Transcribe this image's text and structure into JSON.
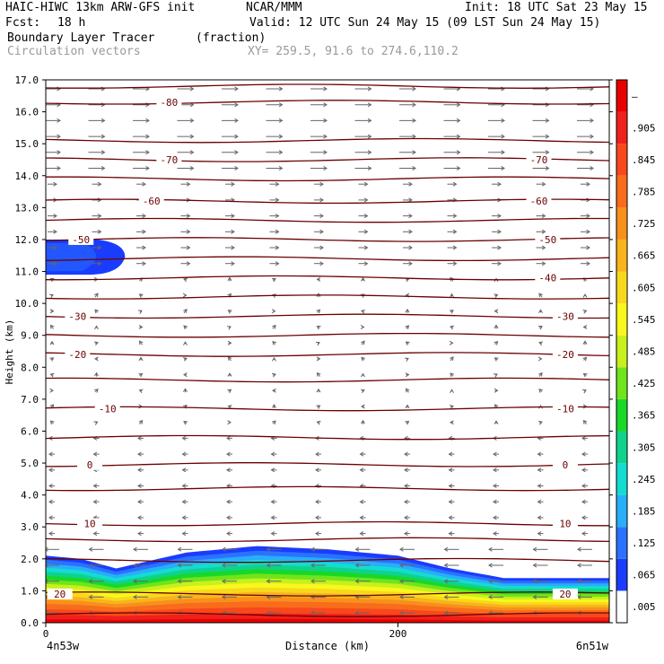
{
  "header": {
    "model": "HAIC-HIWC 13km ARW-GFS init",
    "org": "NCAR/MMM",
    "init": "Init: 18 UTC Sat 23 May 15",
    "fcst_label": "Fcst:",
    "fcst_value": "18 h",
    "valid": "Valid: 12 UTC Sun 24 May 15 (09 LST Sun 24 May 15)",
    "field_name": "Boundary Layer Tracer",
    "field_units": "(fraction)",
    "overlay_name": "Circulation vectors",
    "xsection": "XY= 259.5, 91.6 to 274.6,110.2"
  },
  "chart_data": {
    "type": "heatmap",
    "xlabel": "Distance (km)",
    "ylabel": "Height (km)",
    "xlim": [
      0,
      320
    ],
    "ylim": [
      0,
      17
    ],
    "x_ticks": [
      {
        "value": 0,
        "label": "0"
      },
      {
        "value": 200,
        "label": "200"
      }
    ],
    "x_end_labels": {
      "left": "4n53w",
      "right": "6n51w"
    },
    "y_ticks": [
      "0.0",
      "1.0",
      "2.0",
      "3.0",
      "4.0",
      "5.0",
      "6.0",
      "7.0",
      "8.0",
      "9.0",
      "10.0",
      "11.0",
      "12.0",
      "13.0",
      "14.0",
      "15.0",
      "16.0",
      "17.0"
    ],
    "colorbar": {
      "labels": [
        ".005",
        ".065",
        ".125",
        ".185",
        ".245",
        ".305",
        ".365",
        ".425",
        ".485",
        ".545",
        ".605",
        ".665",
        ".725",
        ".785",
        ".845",
        ".905",
        "–"
      ],
      "colors": [
        "#ffffff",
        "#1a3cff",
        "#2a72ff",
        "#28aefa",
        "#14dcd2",
        "#10d28c",
        "#18d828",
        "#70e41c",
        "#c8f01c",
        "#f8f81c",
        "#f8d81c",
        "#f8b41c",
        "#f8901c",
        "#f86c1c",
        "#f8481c",
        "#f0201c",
        "#e80000"
      ]
    },
    "tracer_layer": {
      "description_x_km": [
        0,
        20,
        40,
        80,
        120,
        160,
        200,
        230,
        260,
        320
      ],
      "top_height_km": [
        2.1,
        2.0,
        1.7,
        2.2,
        2.4,
        2.3,
        2.1,
        1.7,
        1.4,
        1.4
      ]
    },
    "upper_blob": {
      "x_km": [
        0,
        45
      ],
      "height_km": [
        10.9,
        12.0
      ]
    },
    "contours": [
      {
        "label": "-80",
        "height_km": 16.3,
        "label_x_km": [
          70
        ]
      },
      {
        "label": "-70",
        "height_km": 14.5,
        "label_x_km": [
          70,
          280
        ]
      },
      {
        "label": "-60",
        "height_km": 13.2,
        "label_x_km": [
          60,
          280
        ]
      },
      {
        "label": "-50",
        "height_km": 12.0,
        "label_x_km": [
          20,
          285
        ]
      },
      {
        "label": "-40",
        "height_km": 10.8,
        "label_x_km": [
          285
        ]
      },
      {
        "label": "-30",
        "height_km": 9.6,
        "label_x_km": [
          18,
          295
        ]
      },
      {
        "label": "-20",
        "height_km": 8.4,
        "label_x_km": [
          18,
          295
        ]
      },
      {
        "label": "-10",
        "height_km": 6.7,
        "label_x_km": [
          35,
          295
        ]
      },
      {
        "label": "0",
        "height_km": 4.95,
        "label_x_km": [
          25,
          295
        ]
      },
      {
        "label": "10",
        "height_km": 3.1,
        "label_x_km": [
          25,
          295
        ]
      },
      {
        "label": "20",
        "height_km": 0.9,
        "label_x_km": [
          8,
          295
        ]
      }
    ],
    "extra_isotherm_heights_km": [
      16.8,
      15.1,
      13.9,
      12.6,
      11.4,
      10.2,
      9.0,
      7.6,
      5.8,
      4.2,
      2.6,
      1.95,
      0.25
    ],
    "grid": false,
    "legend": "right"
  }
}
